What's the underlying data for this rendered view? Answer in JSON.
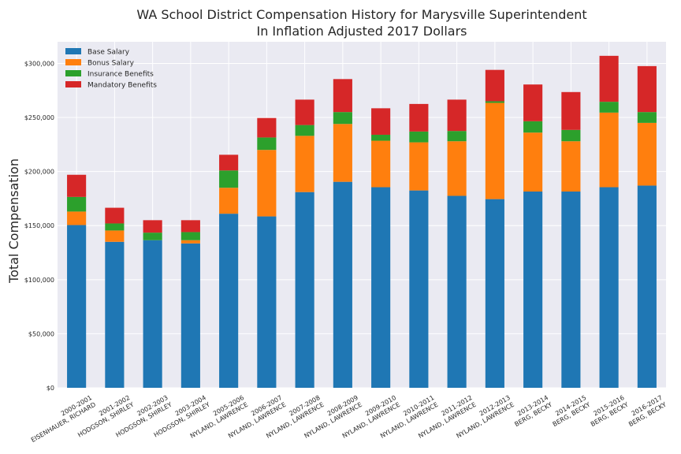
{
  "chart_data": {
    "type": "bar",
    "stacked": true,
    "title": "WA School District Compensation History for Marysville Superintendent",
    "subtitle": "In Inflation Adjusted 2017 Dollars",
    "xlabel": "",
    "ylabel": "Total Compensation",
    "ylim": [
      0,
      320000
    ],
    "yticks": [
      0,
      50000,
      100000,
      150000,
      200000,
      250000,
      300000
    ],
    "ytick_labels": [
      "$0",
      "$50,000",
      "$100,000",
      "$150,000",
      "$200,000",
      "$250,000",
      "$300,000"
    ],
    "grid": true,
    "legend_position": "top-left",
    "categories": [
      [
        "2000-2001",
        "EISENHAUER, RICHARD"
      ],
      [
        "2001-2002",
        "HODGSON, SHIRLEY"
      ],
      [
        "2002-2003",
        "HODGSON, SHIRLEY"
      ],
      [
        "2003-2004",
        "HODGSON, SHIRLEY"
      ],
      [
        "2005-2006",
        "NYLAND, LAWRENCE"
      ],
      [
        "2006-2007",
        "NYLAND, LAWRENCE"
      ],
      [
        "2007-2008",
        "NYLAND, LAWRENCE"
      ],
      [
        "2008-2009",
        "NYLAND, LAWRENCE"
      ],
      [
        "2009-2010",
        "NYLAND, LAWRENCE"
      ],
      [
        "2010-2011",
        "NYLAND, LAWRENCE"
      ],
      [
        "2011-2012",
        "NYLAND, LAWRENCE"
      ],
      [
        "2012-2013",
        "NYLAND, LAWRENCE"
      ],
      [
        "2013-2014",
        "BERG, BECKY"
      ],
      [
        "2014-2015",
        "BERG, BECKY"
      ],
      [
        "2015-2016",
        "BERG, BECKY"
      ],
      [
        "2016-2017",
        "BERG, BECKY"
      ]
    ],
    "series": [
      {
        "name": "Base Salary",
        "color": "#1f77b4",
        "values": [
          150500,
          135000,
          136500,
          133500,
          161000,
          158500,
          181000,
          190500,
          185500,
          182500,
          177500,
          174500,
          181500,
          181500,
          185500,
          187000
        ]
      },
      {
        "name": "Bonus Salary",
        "color": "#ff7f0e",
        "values": [
          12500,
          10500,
          0,
          3000,
          24000,
          61500,
          52000,
          53500,
          43000,
          44500,
          50500,
          89000,
          54500,
          46500,
          69000,
          58000
        ]
      },
      {
        "name": "Insurance Benefits",
        "color": "#2ca02c",
        "values": [
          13500,
          6500,
          7000,
          7500,
          16000,
          11500,
          10000,
          11000,
          5500,
          10000,
          9500,
          1500,
          10500,
          10500,
          10000,
          10000
        ]
      },
      {
        "name": "Mandatory Benefits",
        "color": "#d62728",
        "values": [
          20500,
          14500,
          11500,
          11000,
          14500,
          18000,
          23500,
          30500,
          24500,
          25500,
          29000,
          29000,
          34000,
          35000,
          42500,
          42500
        ]
      }
    ]
  }
}
